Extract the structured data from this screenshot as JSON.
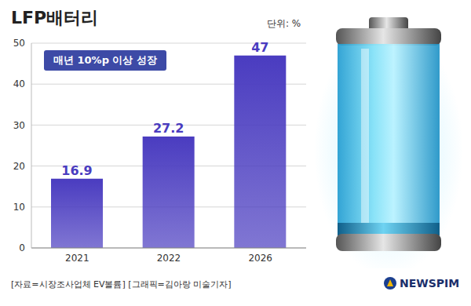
{
  "chart_data": {
    "type": "bar",
    "title": "LFP배터리",
    "unit": "단위: %",
    "annotations": [
      "매년 10%p 이상 성장"
    ],
    "source": "[자료=시장조사업체 EV볼륨] [그래픽=김아랑 미술기자]",
    "logo": "NEWSPIM",
    "categories": [
      "2021",
      "2022",
      "2026"
    ],
    "values": [
      16.9,
      27.2,
      47
    ],
    "color": "#4a3cc0",
    "ylim": [
      0,
      50
    ],
    "yticks": [
      0,
      10,
      20,
      30,
      40,
      50
    ],
    "grid": true,
    "data_labels": true
  }
}
